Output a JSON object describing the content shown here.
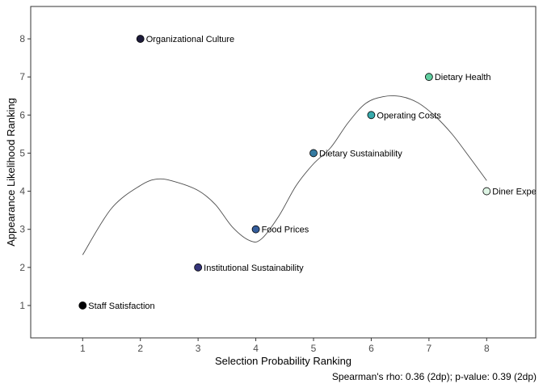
{
  "chart_data": {
    "type": "scatter",
    "xlabel": "Selection Probability Ranking",
    "ylabel": "Appearance Likelihood Ranking",
    "xlim": [
      0.1,
      8.85
    ],
    "ylim": [
      0.15,
      8.85
    ],
    "x_ticks": [
      "1",
      "2",
      "3",
      "4",
      "5",
      "6",
      "7",
      "8"
    ],
    "y_ticks": [
      "1",
      "2",
      "3",
      "4",
      "5",
      "6",
      "7",
      "8"
    ],
    "grid": false,
    "points": [
      {
        "label": "Staff Satisfaction",
        "x": 1,
        "y": 1,
        "color": "#000004"
      },
      {
        "label": "Organizational Culture",
        "x": 2,
        "y": 8,
        "color": "#1d1b3a"
      },
      {
        "label": "Institutional Sustainability",
        "x": 3,
        "y": 2,
        "color": "#35357a"
      },
      {
        "label": "Food Prices",
        "x": 4,
        "y": 3,
        "color": "#355e9c"
      },
      {
        "label": "Dietary Sustainability",
        "x": 5,
        "y": 5,
        "color": "#357ba2"
      },
      {
        "label": "Operating Costs",
        "x": 6,
        "y": 6,
        "color": "#38aaac"
      },
      {
        "label": "Dietary Health",
        "x": 7,
        "y": 7,
        "color": "#60cea0"
      },
      {
        "label": "Diner Expe",
        "x": 8,
        "y": 4,
        "color": "#def5e5"
      }
    ],
    "trend": {
      "x": [
        1.0,
        1.5,
        2.0,
        2.3,
        2.6,
        3.0,
        3.3,
        3.6,
        3.9,
        4.1,
        4.4,
        4.7,
        5.0,
        5.3,
        5.6,
        5.9,
        6.2,
        6.5,
        6.8,
        7.1,
        7.4,
        7.7,
        8.0
      ],
      "y": [
        2.33,
        3.55,
        4.15,
        4.32,
        4.25,
        4.02,
        3.65,
        3.05,
        2.7,
        2.75,
        3.35,
        4.15,
        4.72,
        5.15,
        5.8,
        6.3,
        6.48,
        6.49,
        6.33,
        5.98,
        5.5,
        4.9,
        4.28
      ]
    },
    "caption": "Spearman's rho: 0.36 (2dp); p-value: 0.39 (2dp)"
  }
}
